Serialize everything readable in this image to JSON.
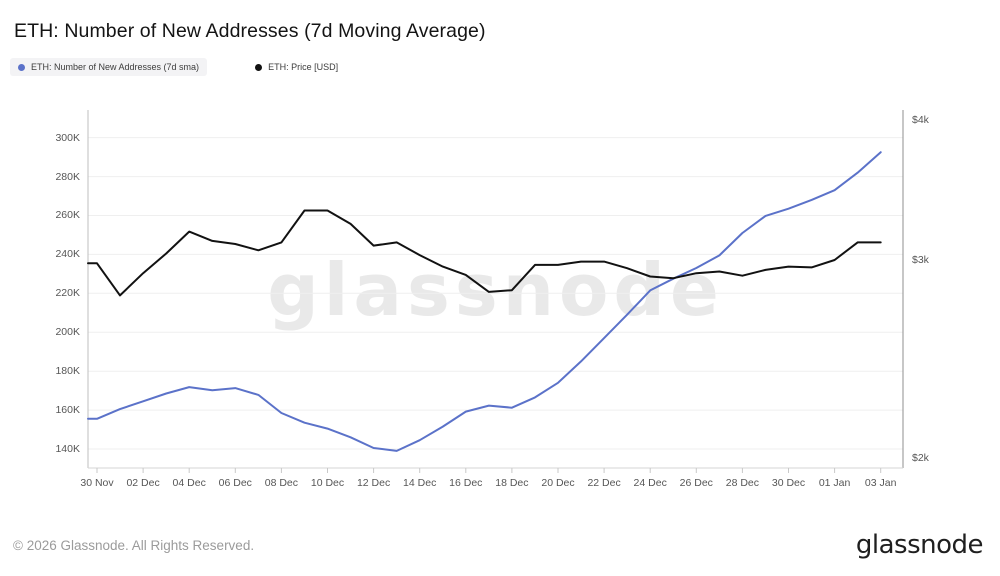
{
  "header": {
    "title": "ETH: Number of New Addresses (7d Moving Average)"
  },
  "legend": {
    "items": [
      {
        "label": "ETH: Number of New Addresses (7d sma)",
        "color": "#5b72c9"
      },
      {
        "label": "ETH: Price [USD]",
        "color": "#121212"
      }
    ]
  },
  "watermark_text": "glassnode",
  "footer": {
    "copyright": "© 2026 Glassnode. All Rights Reserved.",
    "logo_text": "glassnode"
  },
  "chart_data": {
    "type": "line",
    "title": "ETH: Number of New Addresses (7d Moving Average)",
    "grid": "horizontal-only",
    "legend_position": "top-left",
    "x": [
      "30 Nov",
      "01 Dec",
      "02 Dec",
      "03 Dec",
      "04 Dec",
      "05 Dec",
      "06 Dec",
      "07 Dec",
      "08 Dec",
      "09 Dec",
      "10 Dec",
      "11 Dec",
      "12 Dec",
      "13 Dec",
      "14 Dec",
      "15 Dec",
      "16 Dec",
      "17 Dec",
      "18 Dec",
      "19 Dec",
      "20 Dec",
      "21 Dec",
      "22 Dec",
      "23 Dec",
      "24 Dec",
      "25 Dec",
      "26 Dec",
      "27 Dec",
      "28 Dec",
      "29 Dec",
      "30 Dec",
      "31 Dec",
      "01 Jan",
      "02 Jan",
      "03 Jan"
    ],
    "x_tick_labels": [
      "30 Nov",
      "02 Dec",
      "04 Dec",
      "06 Dec",
      "08 Dec",
      "10 Dec",
      "12 Dec",
      "14 Dec",
      "16 Dec",
      "18 Dec",
      "20 Dec",
      "22 Dec",
      "24 Dec",
      "26 Dec",
      "28 Dec",
      "30 Dec",
      "01 Jan",
      "03 Jan"
    ],
    "left_axis": {
      "scale": "linear",
      "ticks": [
        140000,
        160000,
        180000,
        200000,
        220000,
        240000,
        260000,
        280000,
        300000
      ],
      "labels": [
        "140K",
        "160K",
        "180K",
        "200K",
        "220K",
        "240K",
        "260K",
        "280K",
        "300K"
      ],
      "approx_range": [
        130000,
        312000
      ]
    },
    "right_axis": {
      "scale": "log",
      "ticks": [
        2000,
        3000,
        4000
      ],
      "labels": [
        "$2k",
        "$3k",
        "$4k"
      ],
      "approx_range": [
        1960,
        4030
      ]
    },
    "series": [
      {
        "name": "ETH: Number of New Addresses (7d sma)",
        "axis": "left",
        "color": "#5b72c9",
        "unit": "addresses",
        "values": [
          155500,
          160500,
          164500,
          168500,
          171800,
          170200,
          171300,
          167800,
          158500,
          153500,
          150500,
          146000,
          140500,
          139000,
          144500,
          151500,
          159200,
          162300,
          161200,
          166500,
          174000,
          185000,
          197000,
          209000,
          221500,
          227500,
          233000,
          239500,
          251000,
          259800,
          263500,
          268000,
          273000,
          282000,
          292500
        ]
      },
      {
        "name": "ETH: Price [USD]",
        "axis": "right",
        "color": "#121212",
        "unit": "USD",
        "values": [
          2980,
          2790,
          2920,
          3040,
          3180,
          3120,
          3100,
          3060,
          3110,
          3320,
          3320,
          3230,
          3090,
          3110,
          3030,
          2960,
          2910,
          2810,
          2820,
          2970,
          2970,
          2990,
          2990,
          2950,
          2900,
          2890,
          2920,
          2930,
          2905,
          2940,
          2960,
          2955,
          3000,
          3110,
          3110
        ]
      }
    ]
  }
}
